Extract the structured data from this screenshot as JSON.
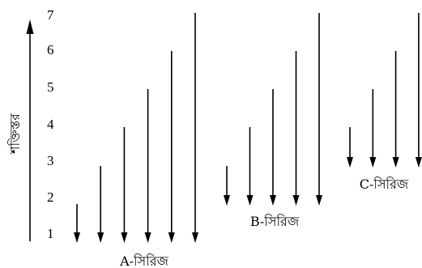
{
  "diagram": {
    "axis_label": "শক্তিস্তর",
    "levels": [
      "1",
      "2",
      "3",
      "4",
      "5",
      "6",
      "7"
    ],
    "series": [
      {
        "label": "A-সিরিজ",
        "final_level": 1,
        "initial_levels": [
          2,
          3,
          4,
          5,
          6,
          7
        ]
      },
      {
        "label": "B-সিরিজ",
        "final_level": 2,
        "initial_levels": [
          3,
          4,
          5,
          6,
          7
        ]
      },
      {
        "label": "C-সিরিজ",
        "final_level": 3,
        "initial_levels": [
          4,
          5,
          6,
          7
        ]
      }
    ],
    "colors": {
      "ink": "#000000",
      "background": "#ffffff"
    }
  }
}
